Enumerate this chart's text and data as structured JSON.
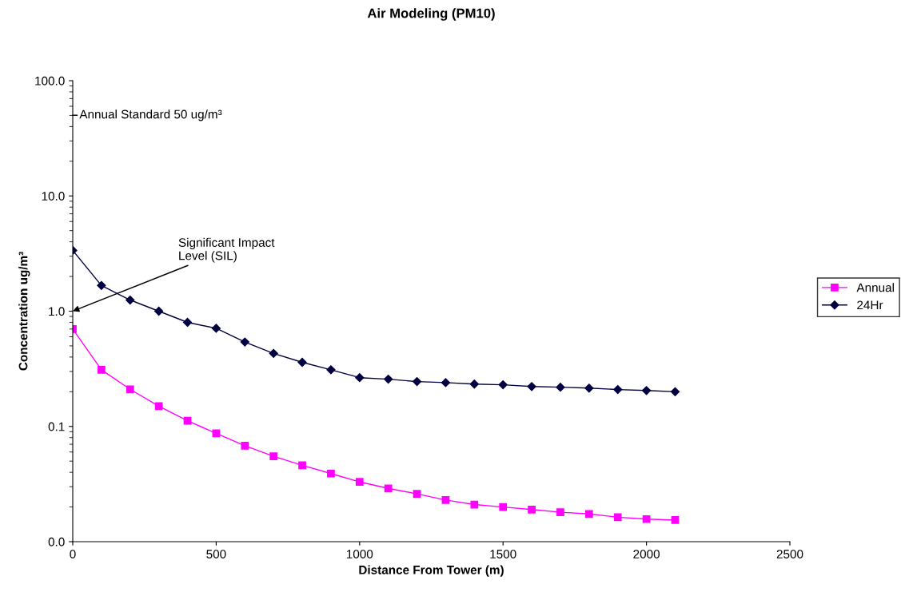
{
  "chart_data": {
    "type": "line",
    "title": "Air Modeling (PM10)",
    "xlabel": "Distance From Tower (m)",
    "ylabel": "Concentration ug/m³",
    "x": [
      0,
      100,
      200,
      300,
      400,
      500,
      600,
      700,
      800,
      900,
      1000,
      1100,
      1200,
      1300,
      1400,
      1500,
      1600,
      1700,
      1800,
      1900,
      2000,
      2100
    ],
    "series": [
      {
        "name": "Annual",
        "color": "#ff00ff",
        "marker": "square",
        "values": [
          0.7,
          0.31,
          0.21,
          0.15,
          0.112,
          0.087,
          0.068,
          0.055,
          0.046,
          0.039,
          0.033,
          0.029,
          0.026,
          0.023,
          0.021,
          0.02,
          0.019,
          0.018,
          0.0174,
          0.0163,
          0.0157,
          0.0154
        ]
      },
      {
        "name": "24Hr",
        "color": "#000040",
        "marker": "diamond",
        "values": [
          3.37,
          1.67,
          1.25,
          1.0,
          0.8,
          0.71,
          0.54,
          0.43,
          0.36,
          0.31,
          0.265,
          0.257,
          0.245,
          0.24,
          0.233,
          0.23,
          0.222,
          0.219,
          0.215,
          0.209,
          0.205,
          0.2
        ]
      }
    ],
    "log": "y",
    "xlim": [
      0,
      2500
    ],
    "xticks": [
      0,
      500,
      1000,
      1500,
      2000,
      2500
    ],
    "ylim": [
      0.01,
      100
    ],
    "yticks": [
      {
        "value": 0.01,
        "label": "0.0"
      },
      0.1,
      {
        "value": 1,
        "label": "1.0"
      },
      {
        "value": 10,
        "label": "10.0"
      },
      {
        "value": 100,
        "label": "100.0"
      }
    ],
    "annotations": [
      "Annual Standard 50 ug/m³",
      "Significant Impact\nLevel (SIL)"
    ],
    "grid": false,
    "legend": "right",
    "line_style": "solid"
  }
}
